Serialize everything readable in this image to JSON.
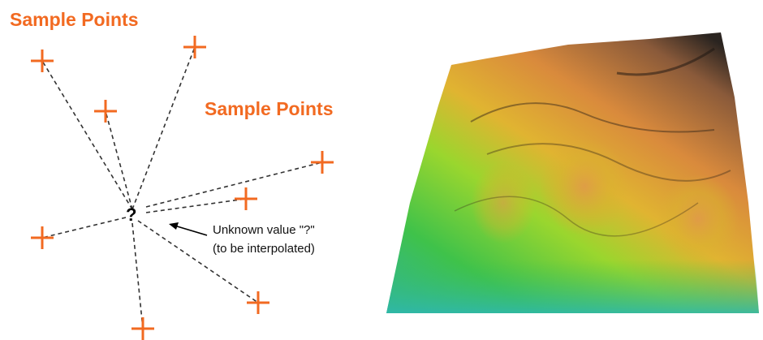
{
  "diagram": {
    "labels": {
      "top_left": "Sample Points",
      "middle": "Sample Points"
    },
    "unknown": {
      "symbol": "?",
      "line1": "Unknown value \"?\"",
      "line2": "(to be interpolated)"
    }
  }
}
